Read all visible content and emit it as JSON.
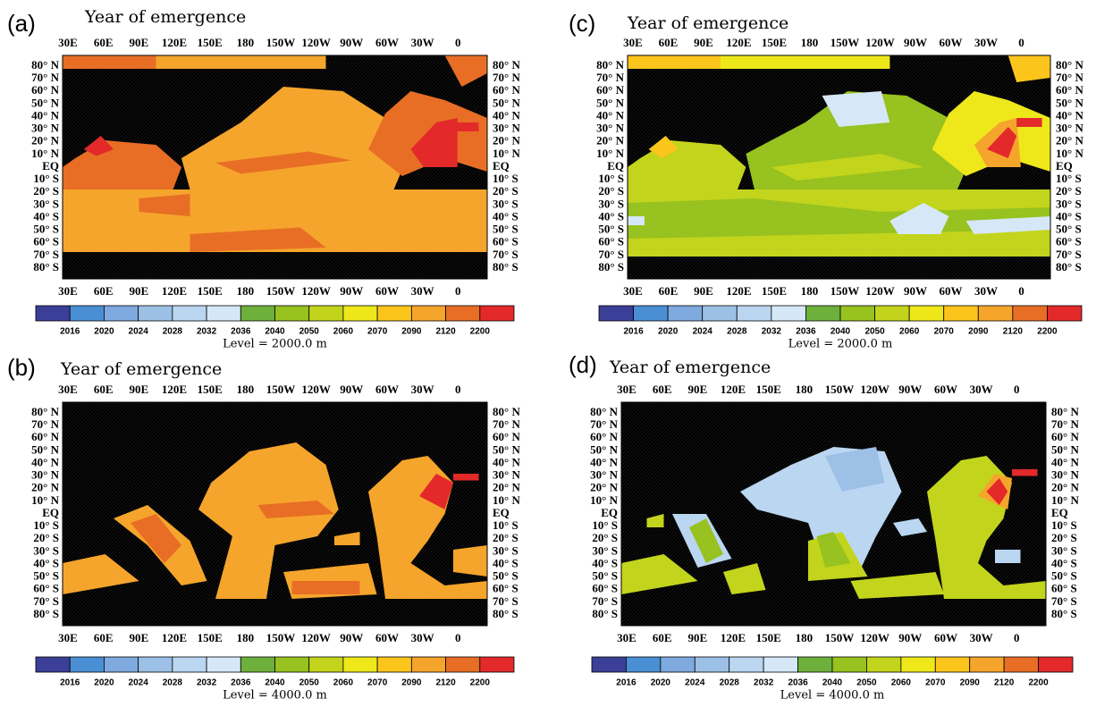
{
  "panels": [
    {
      "label": "(a)",
      "title": "Year of emergence",
      "level": "Level = 2000.0 m"
    },
    {
      "label": "(b)",
      "title": "Year of emergence",
      "level": "Level = 4000.0 m"
    },
    {
      "label": "(c)",
      "title": "Year of emergence",
      "level": "Level = 2000.0 m"
    },
    {
      "label": "(d)",
      "title": "Year of emergence",
      "level": "Level = 4000.0 m"
    }
  ],
  "longitudes": [
    "30E",
    "60E",
    "90E",
    "120E",
    "150E",
    "180",
    "150W",
    "120W",
    "90W",
    "60W",
    "30W",
    "0"
  ],
  "latitudes_left": [
    "80° N",
    "70° N",
    "60° N",
    "50° N",
    "40° N",
    "30° N",
    "20° N",
    "10° N",
    "EQ",
    "10° S",
    "20° S",
    "30° S",
    "40° S",
    "50° S",
    "60° S",
    "70° S",
    "80° S"
  ],
  "latitudes_right": [
    "80° N",
    "70° N",
    "60° N",
    "50° N",
    "40° N",
    "30° N",
    "20° N",
    "10° N",
    "EQ",
    "10° S",
    "20° S",
    "30° S",
    "40° S",
    "50° S",
    "60° S",
    "70° S",
    "80° S"
  ],
  "colorbar": {
    "labels": [
      "2016",
      "2020",
      "2024",
      "2028",
      "2032",
      "2036",
      "2040",
      "2050",
      "2060",
      "2070",
      "2090",
      "2120",
      "2200"
    ],
    "colors": [
      "#3b3f98",
      "#4a8fd4",
      "#7faadf",
      "#9cc0e6",
      "#bad6f1",
      "#d6e8f8",
      "#6db03c",
      "#97c21f",
      "#c3d41c",
      "#eee81a",
      "#fbc51c",
      "#f5a52b",
      "#e86e25",
      "#e3292a"
    ]
  }
}
